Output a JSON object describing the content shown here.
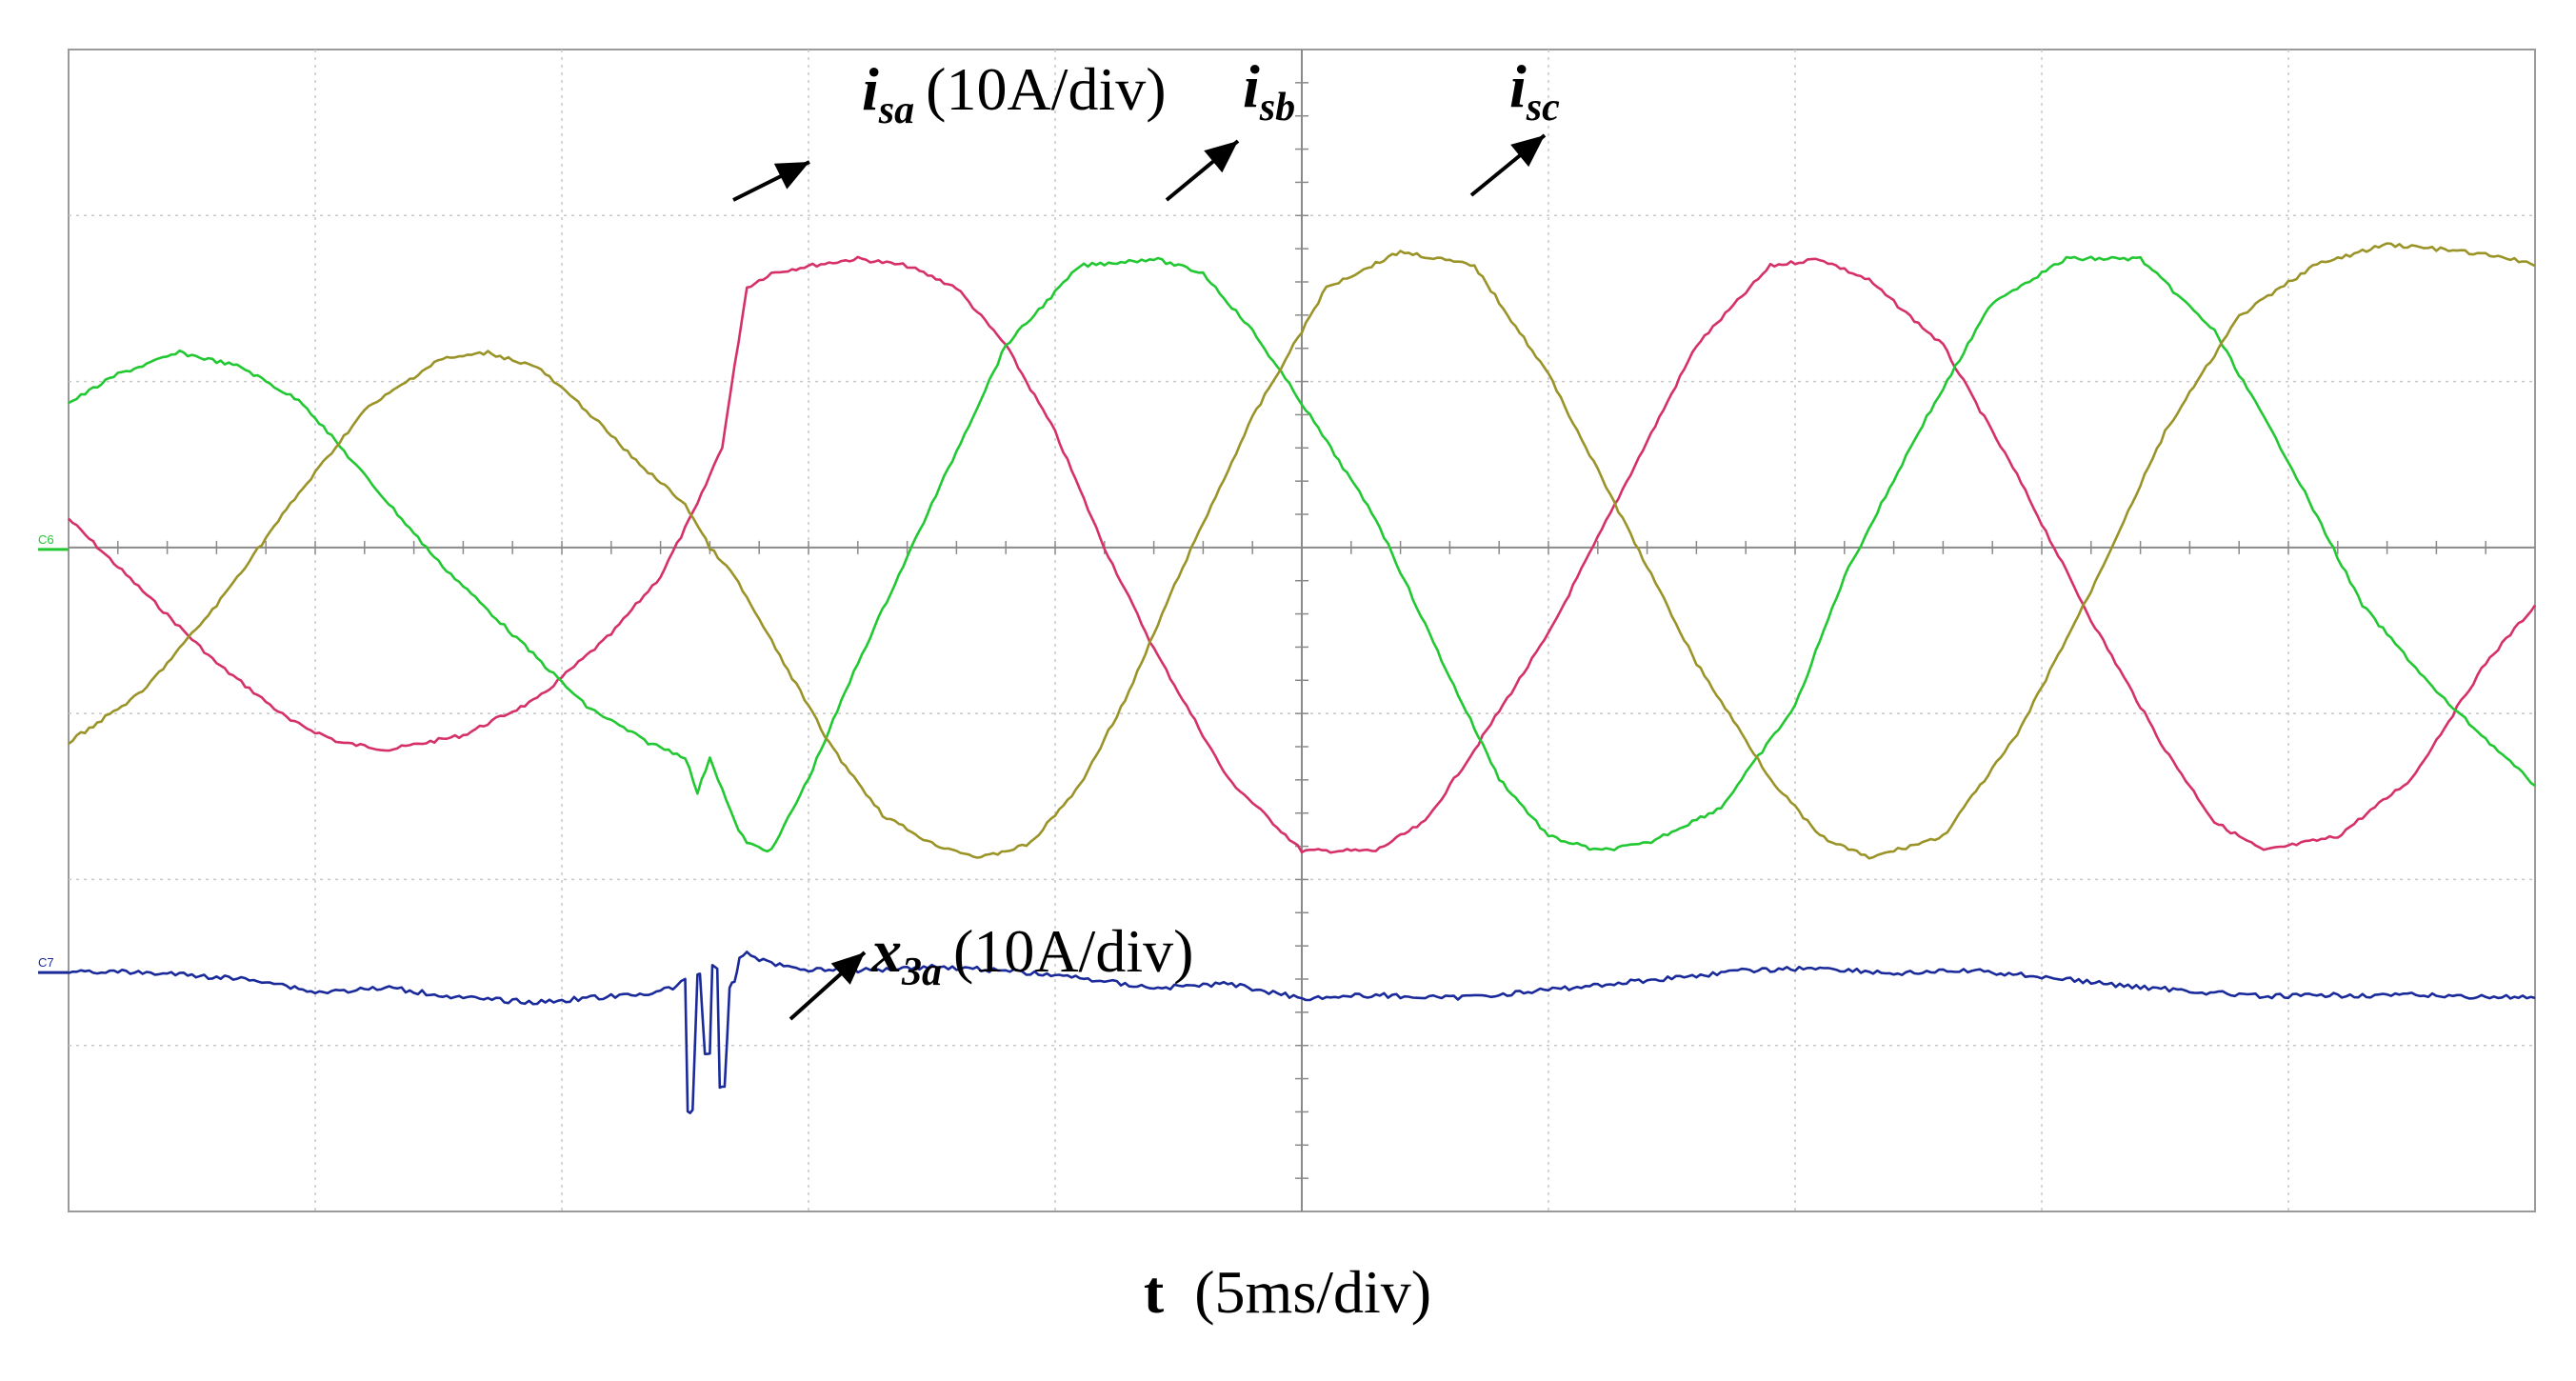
{
  "chart_data": {
    "type": "line",
    "grid": true,
    "xlabel_bold": "t",
    "xlabel_rest": "(5ms/div)",
    "x_divisions": 10,
    "y_divisions": 7,
    "channel_markers": [
      "C6",
      "C7"
    ],
    "series": [
      {
        "name": "i_sa",
        "label_main": "i",
        "label_sub": "sa",
        "label_suffix": "(10A/div)",
        "color": "#d6306a",
        "x_div": [
          0,
          0.3,
          0.6,
          0.9,
          1.1,
          1.3,
          1.6,
          1.9,
          2.2,
          2.4,
          2.55,
          2.65,
          2.75,
          2.85,
          3.0,
          3.2,
          3.4,
          3.6,
          3.8,
          4.0,
          4.2,
          4.4,
          4.7,
          5.0,
          5.3,
          5.5,
          5.7,
          6.0,
          6.3,
          6.6,
          6.9,
          7.1,
          7.3,
          7.6,
          7.9,
          8.2,
          8.5,
          8.7,
          8.9,
          9.2,
          9.5,
          9.8,
          10.0
        ],
        "y_div": [
          0.2,
          -0.3,
          -0.8,
          -1.2,
          -1.35,
          -1.4,
          -1.3,
          -1.05,
          -0.6,
          -0.2,
          0.3,
          0.7,
          1.8,
          1.9,
          1.95,
          2.0,
          1.95,
          1.8,
          1.4,
          0.8,
          0.0,
          -0.7,
          -1.6,
          -2.1,
          -2.1,
          -1.9,
          -1.4,
          -0.6,
          0.4,
          1.4,
          1.95,
          2.0,
          1.85,
          1.4,
          0.5,
          -0.5,
          -1.4,
          -1.9,
          -2.1,
          -2.0,
          -1.6,
          -0.8,
          -0.4
        ]
      },
      {
        "name": "i_sb",
        "label_main": "i",
        "label_sub": "sb",
        "color": "#22c832",
        "x_div": [
          0,
          0.2,
          0.45,
          0.7,
          0.95,
          1.2,
          1.5,
          1.8,
          2.1,
          2.35,
          2.5,
          2.55,
          2.6,
          2.7,
          2.75,
          2.85,
          3.0,
          3.2,
          3.5,
          3.8,
          4.1,
          4.4,
          4.6,
          4.8,
          5.0,
          5.3,
          5.6,
          5.8,
          6.0,
          6.2,
          6.4,
          6.7,
          7.0,
          7.2,
          7.5,
          7.8,
          8.1,
          8.4,
          8.7,
          9.0,
          9.3,
          9.6,
          10.0
        ],
        "y_div": [
          1.0,
          1.2,
          1.35,
          1.25,
          1.0,
          0.5,
          -0.1,
          -0.6,
          -1.1,
          -1.35,
          -1.45,
          -1.7,
          -1.45,
          -1.9,
          -2.05,
          -2.1,
          -1.6,
          -0.8,
          0.3,
          1.4,
          1.95,
          2.0,
          1.9,
          1.5,
          1.0,
          0.2,
          -0.9,
          -1.6,
          -2.0,
          -2.1,
          -2.05,
          -1.8,
          -1.1,
          -0.2,
          0.8,
          1.7,
          2.0,
          2.0,
          1.5,
          0.6,
          -0.4,
          -1.0,
          -1.65
        ]
      },
      {
        "name": "i_sc",
        "label_main": "i",
        "label_sub": "sc",
        "color": "#9a9428",
        "x_div": [
          0,
          0.3,
          0.6,
          0.9,
          1.2,
          1.5,
          1.7,
          1.9,
          2.1,
          2.3,
          2.5,
          2.6,
          2.7,
          2.9,
          3.1,
          3.3,
          3.5,
          3.7,
          3.9,
          4.1,
          4.3,
          4.5,
          4.8,
          5.1,
          5.4,
          5.7,
          6.0,
          6.3,
          6.6,
          6.9,
          7.1,
          7.3,
          7.6,
          7.9,
          8.2,
          8.5,
          8.8,
          9.1,
          9.4,
          9.7,
          9.9,
          10.0
        ],
        "y_div": [
          -1.35,
          -1.0,
          -0.4,
          0.3,
          0.95,
          1.3,
          1.35,
          1.25,
          0.95,
          0.6,
          0.3,
          0.0,
          -0.2,
          -0.8,
          -1.4,
          -1.85,
          -2.05,
          -2.15,
          -2.05,
          -1.65,
          -1.0,
          -0.2,
          0.9,
          1.8,
          2.05,
          1.95,
          1.2,
          0.2,
          -0.8,
          -1.6,
          -2.0,
          -2.15,
          -2.0,
          -1.3,
          -0.3,
          0.8,
          1.6,
          1.95,
          2.1,
          2.05,
          2.0,
          1.95
        ]
      },
      {
        "name": "x_3a",
        "label_main": "x",
        "label_sub": "3a",
        "label_suffix": "(10A/div)",
        "color": "#1a2a9a",
        "x_div": [
          0,
          0.4,
          0.8,
          1.0,
          1.3,
          1.6,
          1.9,
          2.1,
          2.3,
          2.45,
          2.5,
          2.51,
          2.53,
          2.55,
          2.56,
          2.58,
          2.6,
          2.61,
          2.63,
          2.64,
          2.66,
          2.68,
          2.7,
          2.72,
          2.75,
          2.8,
          2.9,
          3.0,
          3.2,
          3.5,
          3.8,
          4.1,
          4.4,
          4.7,
          5.0,
          5.3,
          5.6,
          5.9,
          6.2,
          6.5,
          6.8,
          7.1,
          7.4,
          7.7,
          8.0,
          8.3,
          8.6,
          8.9,
          9.2,
          9.5,
          9.8,
          10.0
        ],
        "y_div": [
          -2.93,
          -2.95,
          -3.0,
          -3.08,
          -3.05,
          -3.12,
          -3.15,
          -3.12,
          -3.1,
          -3.05,
          -3.0,
          -3.9,
          -3.9,
          -2.95,
          -2.95,
          -3.5,
          -3.5,
          -2.9,
          -2.9,
          -3.75,
          -3.75,
          -3.05,
          -3.0,
          -2.85,
          -2.8,
          -2.85,
          -2.9,
          -2.92,
          -2.93,
          -2.9,
          -2.93,
          -2.98,
          -3.05,
          -3.02,
          -3.12,
          -3.1,
          -3.12,
          -3.08,
          -3.03,
          -2.98,
          -2.93,
          -2.91,
          -2.95,
          -2.93,
          -2.97,
          -3.03,
          -3.07,
          -3.11,
          -3.1,
          -3.1,
          -3.11,
          -3.12
        ]
      }
    ]
  }
}
